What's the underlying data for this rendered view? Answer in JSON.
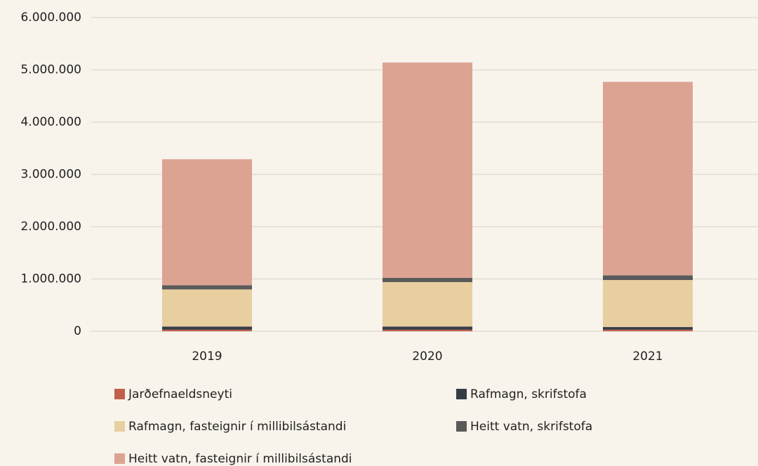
{
  "chart_data": {
    "type": "stacked_bar",
    "categories": [
      "2019",
      "2020",
      "2021"
    ],
    "series": [
      {
        "name": "Jarðefnaeldsneyti",
        "color": "#c0604a",
        "values": [
          30000,
          30000,
          30000
        ]
      },
      {
        "name": "Rafmagn, skrifstofa",
        "color": "#363b47",
        "values": [
          60000,
          60000,
          50000
        ]
      },
      {
        "name": "Rafmagn, fasteignir í millibilsástandi",
        "color": "#e8cfa0",
        "values": [
          710000,
          850000,
          900000
        ]
      },
      {
        "name": "Heitt vatn, skrifstofa",
        "color": "#5a5a5a",
        "values": [
          80000,
          80000,
          90000
        ]
      },
      {
        "name": "Heitt vatn, fasteignir í millibilsástandi",
        "color": "#dca393",
        "values": [
          2410000,
          4120000,
          3700000
        ]
      }
    ],
    "ylim": [
      0,
      6000000
    ],
    "yticks": [
      0,
      {
        "value": 1000000,
        "label": "1.000.000"
      },
      {
        "value": 2000000,
        "label": "2.000.000"
      },
      {
        "value": 3000000,
        "label": "3.000.000"
      },
      {
        "value": 4000000,
        "label": "4.000.000"
      },
      {
        "value": 5000000,
        "label": "5.000.000"
      },
      {
        "value": 6000000,
        "label": "6.000.000"
      }
    ],
    "grid": true
  }
}
